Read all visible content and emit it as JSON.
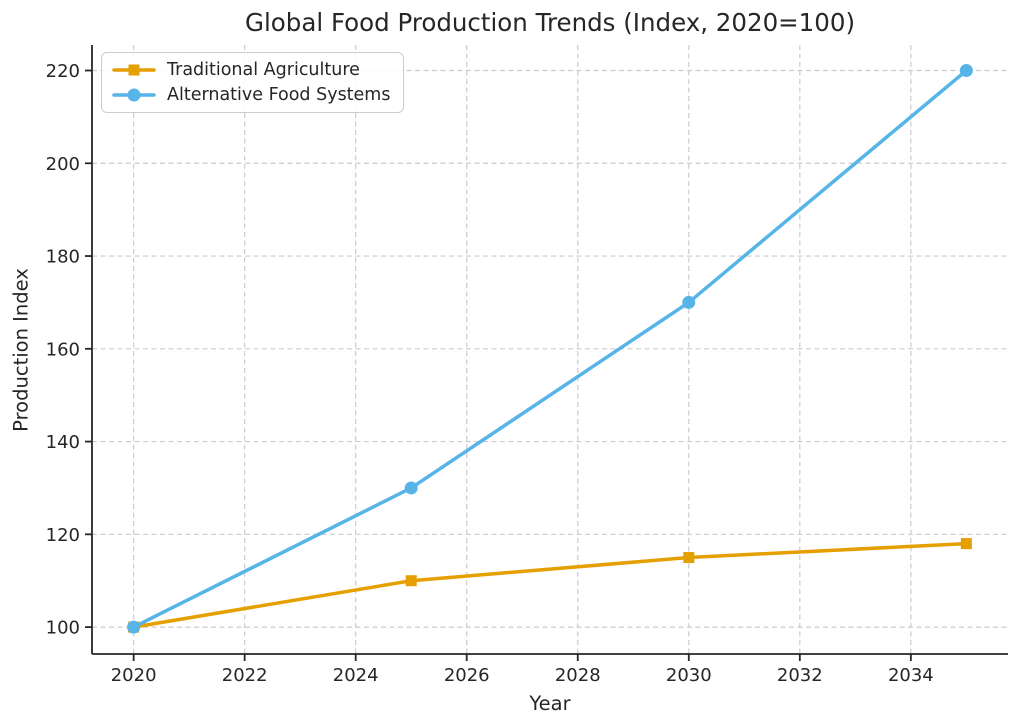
{
  "chart_data": {
    "type": "line",
    "title": "Global Food Production Trends (Index, 2020=100)",
    "xlabel": "Year",
    "ylabel": "Production Index",
    "x": [
      2020,
      2025,
      2030,
      2035
    ],
    "series": [
      {
        "name": "Traditional Agriculture",
        "values": [
          100,
          110,
          115,
          118
        ],
        "color": "#E69F00",
        "marker": "square"
      },
      {
        "name": "Alternative Food Systems",
        "values": [
          100,
          130,
          170,
          220
        ],
        "color": "#56B4E9",
        "marker": "circle"
      }
    ],
    "xticks": [
      2020,
      2022,
      2024,
      2026,
      2028,
      2030,
      2032,
      2034
    ],
    "yticks": [
      100,
      120,
      140,
      160,
      180,
      200,
      220
    ],
    "xlim": [
      2019.25,
      2035.75
    ],
    "ylim": [
      94.2,
      225.5
    ],
    "grid": true,
    "grid_style": "dashed",
    "legend_position": "upper-left",
    "colors": {
      "axis": "#262626",
      "grid": "#cccccc",
      "background": "#ffffff",
      "text": "#262626"
    }
  }
}
